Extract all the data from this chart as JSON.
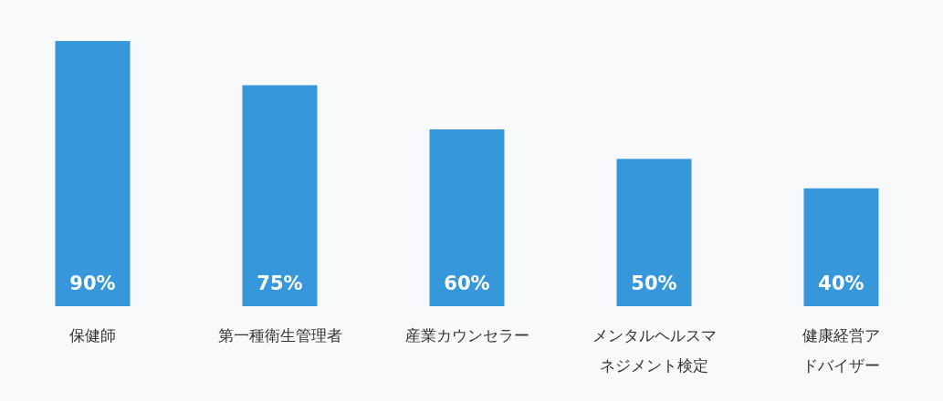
{
  "chart_data": {
    "type": "bar",
    "categories": [
      "保健師",
      "第一種衛生管理者",
      "産業カウンセラー",
      "メンタルヘルスマネジメント検定",
      "健康経営アドバイザー"
    ],
    "values": [
      90,
      75,
      60,
      50,
      40
    ],
    "value_labels": [
      "90%",
      "75%",
      "60%",
      "50%",
      "40%"
    ],
    "color": "#3698db"
  }
}
